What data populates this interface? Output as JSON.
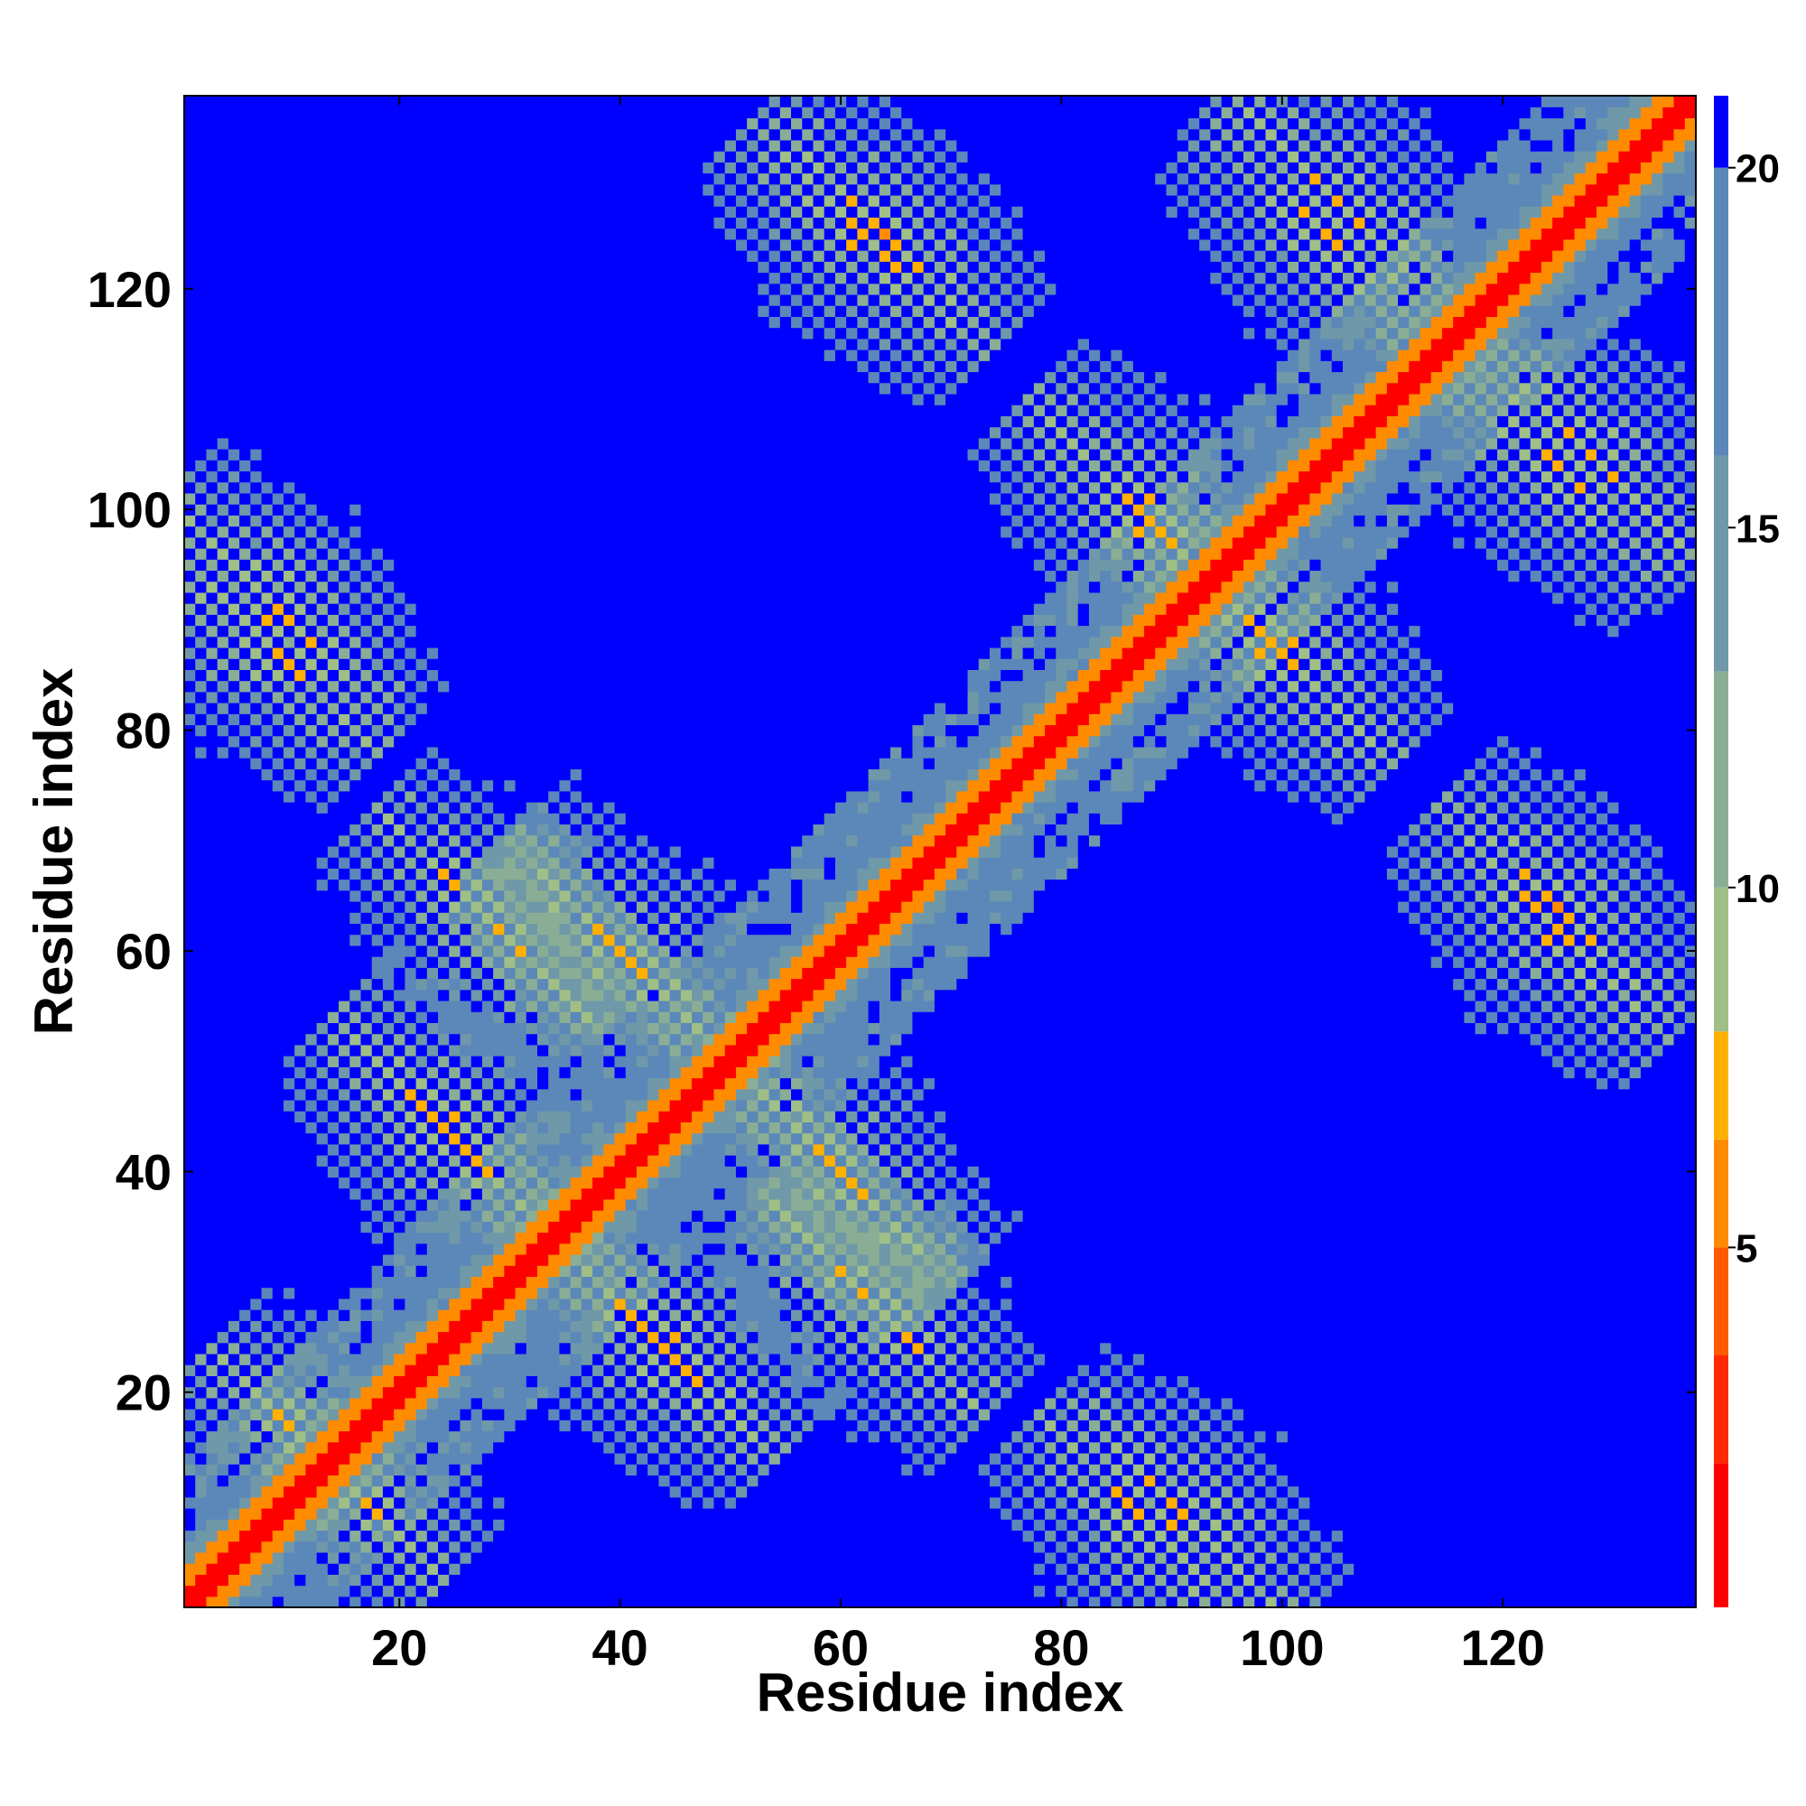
{
  "chart_data": {
    "type": "heatmap",
    "title": "",
    "xlabel": "Residue index",
    "ylabel": "Residue index",
    "n_residues": 137,
    "xlim": [
      1,
      137
    ],
    "ylim": [
      1,
      137
    ],
    "x_ticks": [
      20,
      40,
      60,
      80,
      100,
      120
    ],
    "y_ticks": [
      20,
      40,
      60,
      80,
      100,
      120
    ],
    "colorbar": {
      "ticks": [
        5,
        10,
        15,
        20
      ],
      "range": [
        0,
        21
      ],
      "colors": [
        "#ff0000",
        "#ff2a00",
        "#ff5a00",
        "#ff8c00",
        "#ffb000",
        "#9fbf86",
        "#8aae95",
        "#6f98a8",
        "#5b88b8",
        "#0000ff"
      ],
      "boundaries": [
        0,
        2,
        3.5,
        5,
        6.5,
        8,
        10,
        13,
        16,
        20,
        21
      ]
    },
    "grid": false,
    "values_note": "",
    "diagonal_band_value": 1,
    "contacts": [
      {
        "x": 63,
        "y": 28,
        "value": 6
      },
      {
        "x": 40,
        "y": 60,
        "value": 6
      },
      {
        "x": 88,
        "y": 8,
        "value": 6
      },
      {
        "x": 9,
        "y": 91,
        "value": 6
      },
      {
        "x": 64,
        "y": 125,
        "value": 6
      },
      {
        "x": 105,
        "y": 128,
        "value": 6
      },
      {
        "x": 87,
        "y": 100,
        "value": 6
      },
      {
        "x": 99,
        "y": 88,
        "value": 6
      },
      {
        "x": 125,
        "y": 104,
        "value": 6
      },
      {
        "x": 125,
        "y": 62,
        "value": 6
      },
      {
        "x": 44,
        "y": 24,
        "value": 6
      },
      {
        "x": 24,
        "y": 44,
        "value": 6
      },
      {
        "x": 14,
        "y": 13,
        "value": 6
      }
    ]
  }
}
